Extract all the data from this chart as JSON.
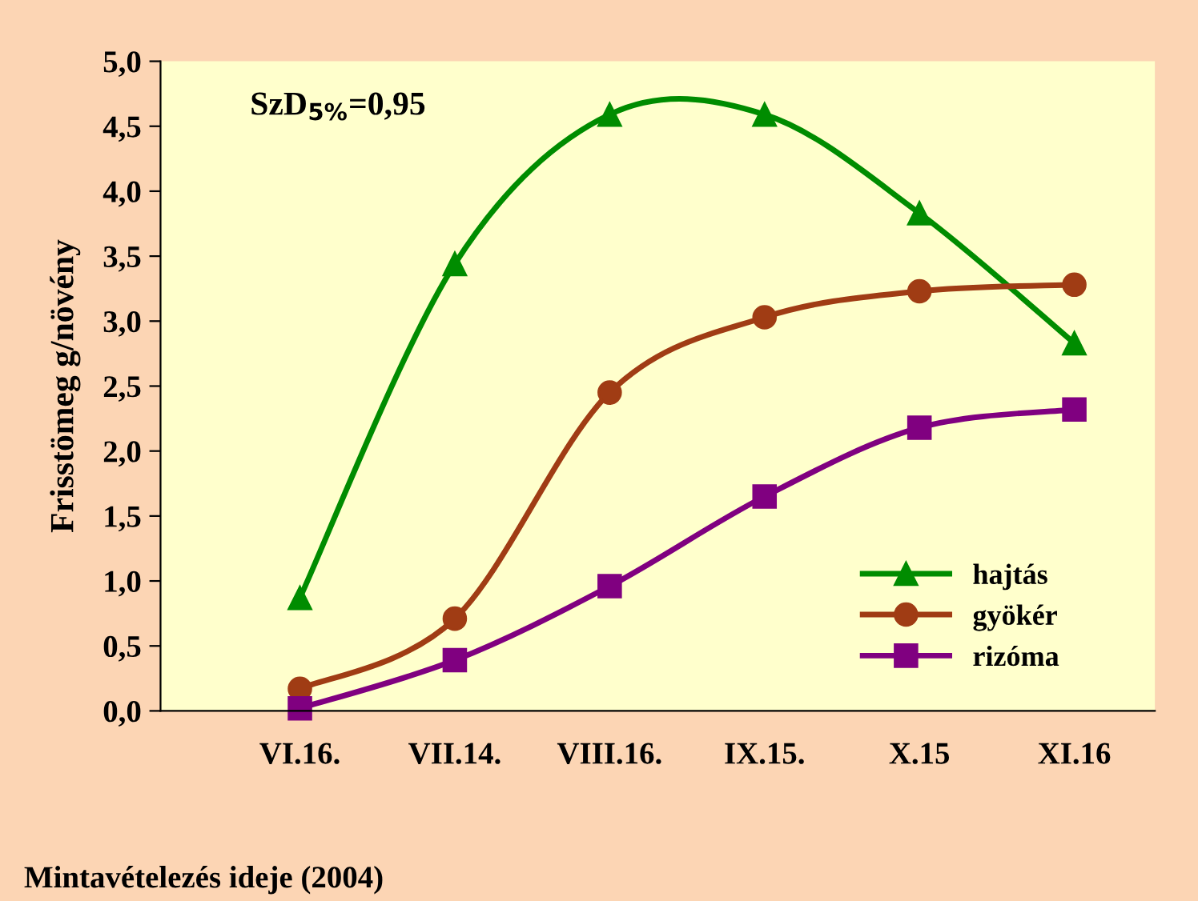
{
  "chart_data": {
    "type": "line",
    "ylabel": "Frisstömeg g/növény",
    "xlabel": "Mintavételezés ideje (2004)",
    "annotations": [
      "SzD$_{5%}$=0,95"
    ],
    "categories": [
      "VI.16.",
      "VII.14.",
      "VIII.16.",
      "IX.15.",
      "X.15",
      "XI.16"
    ],
    "series": [
      {
        "name": "hajtás",
        "color": "#008c00",
        "marker": "triangle",
        "values": [
          0.87,
          3.44,
          4.59,
          4.59,
          3.83,
          2.83
        ]
      },
      {
        "name": "gyökér",
        "color": "#a03c14",
        "marker": "circle",
        "values": [
          0.17,
          0.71,
          2.45,
          3.03,
          3.23,
          3.28
        ]
      },
      {
        "name": "rizóma",
        "color": "#800080",
        "marker": "square",
        "values": [
          0.02,
          0.39,
          0.96,
          1.65,
          2.18,
          2.32
        ]
      }
    ],
    "ylim": [
      0,
      5
    ],
    "yticks": [
      {
        "value": 0,
        "label": "0,0"
      },
      {
        "value": 0.5,
        "label": "0,5"
      },
      {
        "value": 1,
        "label": "1,0"
      },
      {
        "value": 1.5,
        "label": "1,5"
      },
      {
        "value": 2,
        "label": "2,0"
      },
      {
        "value": 2.5,
        "label": "2,5"
      },
      {
        "value": 3,
        "label": "3,0"
      },
      {
        "value": 3.5,
        "label": "3,5"
      },
      {
        "value": 4,
        "label": "4,0"
      },
      {
        "value": 4.5,
        "label": "4,5"
      },
      {
        "value": 5,
        "label": "5,0"
      }
    ],
    "grid": false,
    "legend": "bottom right",
    "line_style": "solid"
  }
}
